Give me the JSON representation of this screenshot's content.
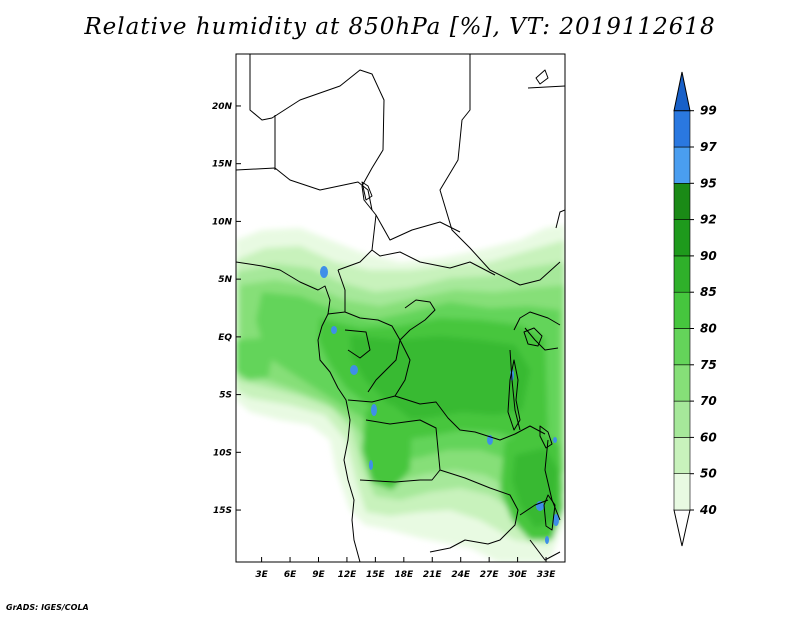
{
  "title": "Relative humidity at 850hPa [%], VT: 2019112618",
  "credit": "GrADS: IGES/COLA",
  "map": {
    "lat_labels": [
      "20N",
      "15N",
      "10N",
      "5N",
      "EQ",
      "5S",
      "10S",
      "15S"
    ],
    "lon_labels": [
      "3E",
      "6E",
      "9E",
      "12E",
      "15E",
      "18E",
      "21E",
      "24E",
      "27E",
      "30E",
      "33E"
    ],
    "lat_range": [
      -19.5,
      24.5
    ],
    "lon_range": [
      0.3,
      35
    ]
  },
  "colorbar": {
    "levels": [
      "40",
      "50",
      "60",
      "70",
      "75",
      "80",
      "85",
      "90",
      "92",
      "95",
      "97",
      "99"
    ],
    "colors": [
      "#ffffff",
      "#e8fae2",
      "#c8f2bc",
      "#a6e89a",
      "#86df78",
      "#64d45a",
      "#46c63e",
      "#2fb02a",
      "#1e9a1c",
      "#1a8a16",
      "#4a9ef0",
      "#2a78e0",
      "#1860c8"
    ]
  }
}
